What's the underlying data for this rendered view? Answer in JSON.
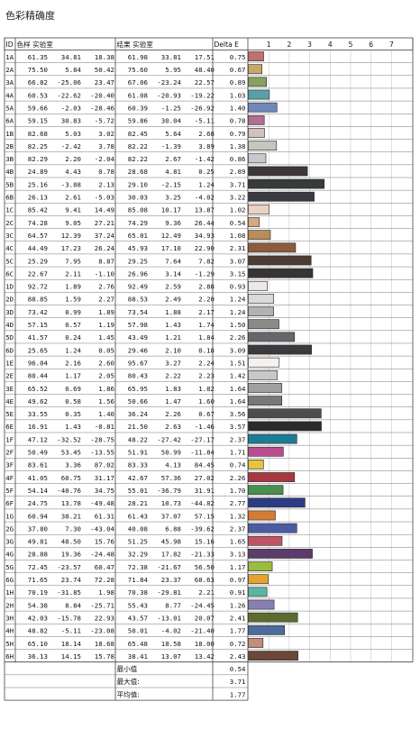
{
  "title": "色彩精确度",
  "headers": {
    "id": "ID",
    "target": "色样 实验室",
    "result": "结果 实验室",
    "delta": "Delta E"
  },
  "summary": [
    {
      "label": "最小值",
      "value": "0.54"
    },
    {
      "label": "最大值:",
      "value": "3.71"
    },
    {
      "label": "平均值:",
      "value": "1.77"
    }
  ],
  "chart_data": {
    "type": "bar",
    "orientation": "horizontal",
    "ticks": [
      1,
      2,
      3,
      4,
      5,
      6,
      7
    ],
    "xlim": [
      0,
      7.5
    ],
    "grid": true,
    "rows": [
      {
        "id": "1A",
        "target": [
          "61.35",
          "34.81",
          "18.38"
        ],
        "result": [
          "61.98",
          "33.81",
          "17.51"
        ],
        "delta": 0.75,
        "color": "#c07070"
      },
      {
        "id": "2A",
        "target": [
          "75.50",
          "5.84",
          "50.42"
        ],
        "result": [
          "75.60",
          "5.95",
          "48.40"
        ],
        "delta": 0.67,
        "color": "#c8a86a"
      },
      {
        "id": "3A",
        "target": [
          "66.82",
          "-25.06",
          "23.47"
        ],
        "result": [
          "67.06",
          "-23.24",
          "22.57"
        ],
        "delta": 0.89,
        "color": "#88a060"
      },
      {
        "id": "4A",
        "target": [
          "60.53",
          "-22.62",
          "-20.40"
        ],
        "result": [
          "61.08",
          "-20.93",
          "-19.22"
        ],
        "delta": 1.03,
        "color": "#58a0a8"
      },
      {
        "id": "5A",
        "target": [
          "59.66",
          "-2.03",
          "-28.46"
        ],
        "result": [
          "60.39",
          "-1.25",
          "-26.92"
        ],
        "delta": 1.4,
        "color": "#7088b8"
      },
      {
        "id": "6A",
        "target": [
          "59.15",
          "30.83",
          "-5.72"
        ],
        "result": [
          "59.86",
          "30.04",
          "-5.11"
        ],
        "delta": 0.78,
        "color": "#b07090"
      },
      {
        "id": "1B",
        "target": [
          "82.68",
          "5.03",
          "3.02"
        ],
        "result": [
          "82.45",
          "5.64",
          "2.68"
        ],
        "delta": 0.79,
        "color": "#d4c0bc"
      },
      {
        "id": "2B",
        "target": [
          "82.25",
          "-2.42",
          "3.78"
        ],
        "result": [
          "82.22",
          "-1.39",
          "3.89"
        ],
        "delta": 1.38,
        "color": "#c4c8bc"
      },
      {
        "id": "3B",
        "target": [
          "82.29",
          "2.20",
          "-2.04"
        ],
        "result": [
          "82.22",
          "2.67",
          "-1.42"
        ],
        "delta": 0.86,
        "color": "#c8c8cc"
      },
      {
        "id": "4B",
        "target": [
          "24.89",
          "4.43",
          "0.78"
        ],
        "result": [
          "28.68",
          "4.81",
          "0.25"
        ],
        "delta": 2.89,
        "color": "#3e3838"
      },
      {
        "id": "5B",
        "target": [
          "25.16",
          "-3.88",
          "2.13"
        ],
        "result": [
          "29.10",
          "-2.15",
          "1.24"
        ],
        "delta": 3.71,
        "color": "#383c38"
      },
      {
        "id": "6B",
        "target": [
          "26.13",
          "2.61",
          "-5.03"
        ],
        "result": [
          "30.03",
          "3.25",
          "-4.02"
        ],
        "delta": 3.22,
        "color": "#3a3a42"
      },
      {
        "id": "1C",
        "target": [
          "85.42",
          "9.41",
          "14.49"
        ],
        "result": [
          "85.08",
          "10.17",
          "13.87"
        ],
        "delta": 1.02,
        "color": "#ecd2c4"
      },
      {
        "id": "2C",
        "target": [
          "74.28",
          "9.05",
          "27.21"
        ],
        "result": [
          "74.29",
          "9.36",
          "26.44"
        ],
        "delta": 0.54,
        "color": "#d4a884"
      },
      {
        "id": "3C",
        "target": [
          "64.57",
          "12.39",
          "37.24"
        ],
        "result": [
          "65.01",
          "12.49",
          "34.93"
        ],
        "delta": 1.08,
        "color": "#b88c5c"
      },
      {
        "id": "4C",
        "target": [
          "44.49",
          "17.23",
          "26.24"
        ],
        "result": [
          "45.93",
          "17.10",
          "22.90"
        ],
        "delta": 2.31,
        "color": "#8c5c3c"
      },
      {
        "id": "5C",
        "target": [
          "25.29",
          "7.95",
          "8.87"
        ],
        "result": [
          "29.25",
          "7.64",
          "7.82"
        ],
        "delta": 3.07,
        "color": "#4c3c34"
      },
      {
        "id": "6C",
        "target": [
          "22.67",
          "2.11",
          "-1.10"
        ],
        "result": [
          "26.96",
          "3.14",
          "-1.29"
        ],
        "delta": 3.15,
        "color": "#383434"
      },
      {
        "id": "1D",
        "target": [
          "92.72",
          "1.89",
          "2.76"
        ],
        "result": [
          "92.49",
          "2.59",
          "2.88"
        ],
        "delta": 0.93,
        "color": "#ece8e8"
      },
      {
        "id": "2D",
        "target": [
          "88.85",
          "1.59",
          "2.27"
        ],
        "result": [
          "88.53",
          "2.49",
          "2.20"
        ],
        "delta": 1.24,
        "color": "#dcdad8"
      },
      {
        "id": "3D",
        "target": [
          "73.42",
          "0.99",
          "1.89"
        ],
        "result": [
          "73.54",
          "1.88",
          "2.17"
        ],
        "delta": 1.24,
        "color": "#b4b2b0"
      },
      {
        "id": "4D",
        "target": [
          "57.15",
          "0.57",
          "1.19"
        ],
        "result": [
          "57.98",
          "1.43",
          "1.74"
        ],
        "delta": 1.5,
        "color": "#8c8a88"
      },
      {
        "id": "5D",
        "target": [
          "41.57",
          "0.24",
          "1.45"
        ],
        "result": [
          "43.49",
          "1.21",
          "1.84"
        ],
        "delta": 2.26,
        "color": "#68666a"
      },
      {
        "id": "6D",
        "target": [
          "25.65",
          "1.24",
          "0.05"
        ],
        "result": [
          "29.46",
          "2.10",
          "0.18"
        ],
        "delta": 3.09,
        "color": "#3c3a3c"
      },
      {
        "id": "1E",
        "target": [
          "96.04",
          "2.16",
          "2.60"
        ],
        "result": [
          "95.67",
          "3.27",
          "2.24"
        ],
        "delta": 1.51,
        "color": "#f6f0ee"
      },
      {
        "id": "2E",
        "target": [
          "80.44",
          "1.17",
          "2.05"
        ],
        "result": [
          "80.43",
          "2.22",
          "2.23"
        ],
        "delta": 1.42,
        "color": "#cac8c6"
      },
      {
        "id": "3E",
        "target": [
          "65.52",
          "0.69",
          "1.86"
        ],
        "result": [
          "65.95",
          "1.83",
          "1.82"
        ],
        "delta": 1.64,
        "color": "#a2a09e"
      },
      {
        "id": "4E",
        "target": [
          "49.62",
          "0.58",
          "1.56"
        ],
        "result": [
          "50.66",
          "1.47",
          "1.60"
        ],
        "delta": 1.64,
        "color": "#7a7876"
      },
      {
        "id": "5E",
        "target": [
          "33.55",
          "0.35",
          "1.40"
        ],
        "result": [
          "36.24",
          "2.26",
          "0.67"
        ],
        "delta": 3.56,
        "color": "#4e4c4c"
      },
      {
        "id": "6E",
        "target": [
          "16.91",
          "1.43",
          "-0.81"
        ],
        "result": [
          "21.50",
          "2.63",
          "-1.46"
        ],
        "delta": 3.57,
        "color": "#2c2a2c"
      },
      {
        "id": "1F",
        "target": [
          "47.12",
          "-32.52",
          "-28.75"
        ],
        "result": [
          "48.22",
          "-27.42",
          "-27.17"
        ],
        "delta": 2.37,
        "color": "#1c7c94"
      },
      {
        "id": "2F",
        "target": [
          "50.49",
          "53.45",
          "-13.55"
        ],
        "result": [
          "51.91",
          "50.99",
          "-11.84"
        ],
        "delta": 1.71,
        "color": "#b84c8c"
      },
      {
        "id": "3F",
        "target": [
          "83.61",
          "3.36",
          "87.02"
        ],
        "result": [
          "83.33",
          "4.13",
          "84.45"
        ],
        "delta": 0.74,
        "color": "#e4c440"
      },
      {
        "id": "4F",
        "target": [
          "41.05",
          "60.75",
          "31.17"
        ],
        "result": [
          "42.67",
          "57.36",
          "27.02"
        ],
        "delta": 2.26,
        "color": "#a83840"
      },
      {
        "id": "5F",
        "target": [
          "54.14",
          "-40.76",
          "34.75"
        ],
        "result": [
          "55.01",
          "-36.79",
          "31.91"
        ],
        "delta": 1.7,
        "color": "#48904c"
      },
      {
        "id": "6F",
        "target": [
          "24.75",
          "13.78",
          "-49.48"
        ],
        "result": [
          "28.21",
          "10.73",
          "-44.82"
        ],
        "delta": 2.77,
        "color": "#2c3c84"
      },
      {
        "id": "1G",
        "target": [
          "60.94",
          "38.21",
          "61.31"
        ],
        "result": [
          "61.43",
          "37.07",
          "57.15"
        ],
        "delta": 1.32,
        "color": "#d47c34"
      },
      {
        "id": "2G",
        "target": [
          "37.80",
          "7.30",
          "-43.04"
        ],
        "result": [
          "40.08",
          "6.88",
          "-39.62"
        ],
        "delta": 2.37,
        "color": "#4c5ca4"
      },
      {
        "id": "3G",
        "target": [
          "49.81",
          "48.50",
          "15.76"
        ],
        "result": [
          "51.25",
          "45.98",
          "15.16"
        ],
        "delta": 1.65,
        "color": "#c05464"
      },
      {
        "id": "4G",
        "target": [
          "28.88",
          "19.36",
          "-24.48"
        ],
        "result": [
          "32.29",
          "17.82",
          "-21.33"
        ],
        "delta": 3.13,
        "color": "#5c3c6c"
      },
      {
        "id": "5G",
        "target": [
          "72.45",
          "-23.57",
          "60.47"
        ],
        "result": [
          "72.38",
          "-21.67",
          "56.50"
        ],
        "delta": 1.17,
        "color": "#9cbc40"
      },
      {
        "id": "6G",
        "target": [
          "71.65",
          "23.74",
          "72.28"
        ],
        "result": [
          "71.84",
          "23.37",
          "68.63"
        ],
        "delta": 0.97,
        "color": "#e4a42c"
      },
      {
        "id": "1H",
        "target": [
          "70.19",
          "-31.85",
          "1.98"
        ],
        "result": [
          "70.38",
          "-29.81",
          "2.21"
        ],
        "delta": 0.91,
        "color": "#5cb4a4"
      },
      {
        "id": "2H",
        "target": [
          "54.38",
          "8.84",
          "-25.71"
        ],
        "result": [
          "55.43",
          "8.77",
          "-24.45"
        ],
        "delta": 1.26,
        "color": "#8880b0"
      },
      {
        "id": "3H",
        "target": [
          "42.03",
          "-15.78",
          "22.93"
        ],
        "result": [
          "43.57",
          "-13.01",
          "20.07"
        ],
        "delta": 2.41,
        "color": "#5c6c30"
      },
      {
        "id": "4H",
        "target": [
          "48.82",
          "-5.11",
          "-23.08"
        ],
        "result": [
          "50.01",
          "-4.02",
          "-21.40"
        ],
        "delta": 1.77,
        "color": "#4c6c9c"
      },
      {
        "id": "5H",
        "target": [
          "65.10",
          "18.14",
          "18.68"
        ],
        "result": [
          "65.48",
          "18.58",
          "18.00"
        ],
        "delta": 0.72,
        "color": "#c48c7c"
      },
      {
        "id": "6H",
        "target": [
          "36.13",
          "14.15",
          "15.78"
        ],
        "result": [
          "38.41",
          "13.07",
          "13.42"
        ],
        "delta": 2.43,
        "color": "#6c4838"
      }
    ]
  }
}
